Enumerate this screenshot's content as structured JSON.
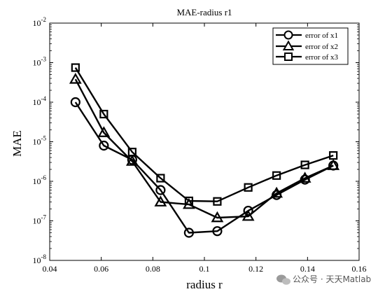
{
  "watermark": {
    "text": "公众号 · 天天Matlab",
    "icon": "wechat-icon"
  },
  "chart_data": {
    "type": "line",
    "title": "MAE-radius r1",
    "xlabel": "radius r",
    "ylabel": "MAE",
    "xlim": [
      0.04,
      0.16
    ],
    "ylim": [
      1e-08,
      0.01
    ],
    "yscale": "log",
    "x_ticks": [
      0.04,
      0.06,
      0.08,
      0.1,
      0.12,
      0.14,
      0.16
    ],
    "x_tick_labels": [
      "0.04",
      "0.06",
      "0.08",
      "0.1",
      "0.12",
      "0.14",
      "0.16"
    ],
    "y_tick_bases": [
      "10",
      "10",
      "10",
      "10",
      "10",
      "10",
      "10"
    ],
    "y_tick_exponents": [
      "-8",
      "-7",
      "-6",
      "-5",
      "-4",
      "-3",
      "-2"
    ],
    "grid": false,
    "legend_position": "top-right",
    "x": [
      0.05,
      0.061,
      0.072,
      0.083,
      0.094,
      0.105,
      0.117,
      0.128,
      0.139,
      0.15
    ],
    "series": [
      {
        "name": "error of x1",
        "marker": "circle",
        "values": [
          0.0001,
          8e-06,
          3.5e-06,
          6e-07,
          5e-08,
          5.5e-08,
          1.8e-07,
          4.5e-07,
          1.1e-06,
          2.5e-06
        ]
      },
      {
        "name": "error of x2",
        "marker": "triangle",
        "values": [
          0.00038,
          1.7e-05,
          3.2e-06,
          3e-07,
          2.6e-07,
          1.2e-07,
          1.3e-07,
          5e-07,
          1.2e-06,
          2.5e-06
        ]
      },
      {
        "name": "error of x3",
        "marker": "square",
        "values": [
          0.00075,
          5e-05,
          5.5e-06,
          1.2e-06,
          3.2e-07,
          3.1e-07,
          7e-07,
          1.4e-06,
          2.6e-06,
          4.5e-06
        ]
      }
    ]
  }
}
